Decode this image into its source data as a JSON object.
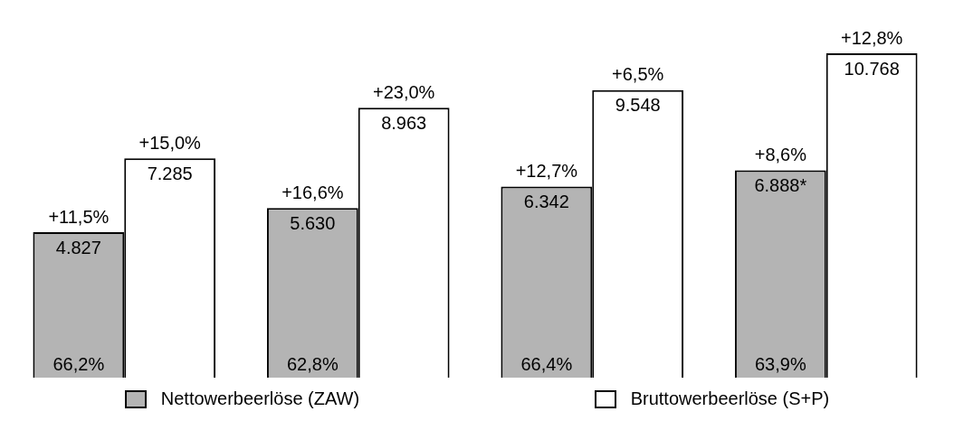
{
  "chart_data": {
    "type": "bar",
    "categories": [
      null,
      null,
      null,
      null
    ],
    "series": [
      {
        "name": "Nettowerbeerlöse (ZAW)",
        "color": "#b4b4b4",
        "values": [
          4827,
          5630,
          6342,
          6888
        ],
        "value_labels": [
          "4.827",
          "5.630",
          "6.342",
          "6.888*"
        ]
      },
      {
        "name": "Bruttowerbeerlöse (S+P)",
        "color": "#ffffff",
        "values": [
          7285,
          8963,
          9548,
          10768
        ],
        "value_labels": [
          "7.285",
          "8.963",
          "9.548",
          "10.768"
        ]
      }
    ],
    "annotations": [
      {
        "text": "+11,5%",
        "y": 4827
      },
      {
        "text": "+15,0%",
        "y": 7285
      },
      {
        "text": "+16,6%",
        "y": 5630
      },
      {
        "text": "+23,0%",
        "y": 8963
      },
      {
        "text": "+12,7%",
        "y": 6342
      },
      {
        "text": "+6,5%",
        "y": 9548
      },
      {
        "text": "+8,6%",
        "y": 6888
      },
      {
        "text": "+12,8%",
        "y": 10768
      },
      {
        "text": "66,2%",
        "y": 0
      },
      {
        "text": "62,8%",
        "y": 0
      },
      {
        "text": "66,4%",
        "y": 0
      },
      {
        "text": "63,9%",
        "y": 0
      }
    ],
    "legend": "bottom"
  }
}
